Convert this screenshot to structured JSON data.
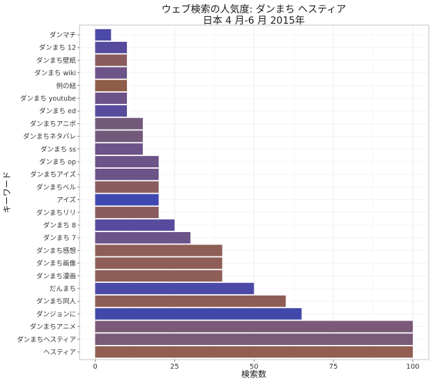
{
  "chart_data": {
    "type": "bar",
    "orientation": "horizontal",
    "title": "ウェブ検索の人気度: ダンまち ヘスティア",
    "subtitle": "日本 4 月-6 月 2015年",
    "xlabel": "検索数",
    "ylabel": "キーワード",
    "xlim": [
      0,
      100
    ],
    "xticks": [
      0,
      25,
      50,
      75,
      100
    ],
    "grid": true,
    "legend": "none",
    "categories": [
      "ダンマチ",
      "ダンまち 12",
      "ダンまち壁紙",
      "ダンまち wiki",
      "例の紐",
      "ダンまち youtube",
      "ダンまち ed",
      "ダンまちアニポ",
      "ダンまちネタバレ",
      "ダンまち ss",
      "ダンまち op",
      "ダンまちアイズ",
      "ダンまちベル",
      "アイズ",
      "ダンまちリリ",
      "ダンまち 8",
      "ダンまち 7",
      "ダンまち感想",
      "ダンまち画像",
      "ダンまち漫画",
      "だんまち",
      "ダンまち同人",
      "ダンジョンに",
      "ダンまちアニメ",
      "ダンまちヘスティア",
      "ヘスティア"
    ],
    "values": [
      5,
      10,
      10,
      10,
      10,
      10,
      10,
      15,
      15,
      15,
      20,
      20,
      20,
      20,
      20,
      25,
      30,
      40,
      40,
      40,
      50,
      60,
      65,
      100,
      100,
      100
    ],
    "colors": [
      "#4c4aa8",
      "#574b9e",
      "#8a5c5e",
      "#6c5388",
      "#8e5e4a",
      "#6c5388",
      "#574b9e",
      "#72597a",
      "#72597a",
      "#6c5388",
      "#6c5388",
      "#6c5388",
      "#8a5c5e",
      "#3f48b0",
      "#8a5c5e",
      "#574b9e",
      "#6c5388",
      "#8e5e56",
      "#8e5e56",
      "#8e5e56",
      "#4c4aa8",
      "#8e5e56",
      "#4048aa",
      "#7a5a78",
      "#7a5a78",
      "#925e52"
    ]
  }
}
